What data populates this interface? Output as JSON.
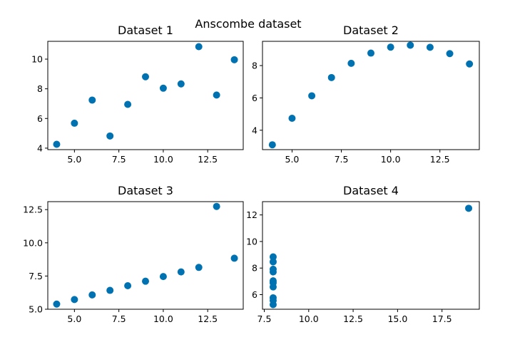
{
  "figure": {
    "title": "Anscombe dataset",
    "marker_color": "#0072b2"
  },
  "chart_data": [
    {
      "type": "scatter",
      "title": "Dataset 1",
      "xlabel": "",
      "ylabel": "",
      "grid": false,
      "xlim": [
        3.5,
        14.5
      ],
      "ylim": [
        3.9,
        11.2
      ],
      "xticks": [
        5.0,
        7.5,
        10.0,
        12.5
      ],
      "xtick_labels": [
        "5.0",
        "7.5",
        "10.0",
        "12.5"
      ],
      "yticks": [
        4,
        6,
        8,
        10
      ],
      "ytick_labels": [
        "4",
        "6",
        "8",
        "10"
      ],
      "x": [
        10,
        8,
        13,
        9,
        11,
        14,
        6,
        4,
        12,
        7,
        5
      ],
      "y": [
        8.04,
        6.95,
        7.58,
        8.81,
        8.33,
        9.96,
        7.24,
        4.26,
        10.84,
        4.82,
        5.68
      ]
    },
    {
      "type": "scatter",
      "title": "Dataset 2",
      "xlabel": "",
      "ylabel": "",
      "grid": false,
      "xlim": [
        3.5,
        14.5
      ],
      "ylim": [
        2.8,
        9.5
      ],
      "xticks": [
        5.0,
        7.5,
        10.0,
        12.5
      ],
      "xtick_labels": [
        "5.0",
        "7.5",
        "10.0",
        "12.5"
      ],
      "yticks": [
        4,
        6,
        8
      ],
      "ytick_labels": [
        "4",
        "6",
        "8"
      ],
      "x": [
        10,
        8,
        13,
        9,
        11,
        14,
        6,
        4,
        12,
        7,
        5
      ],
      "y": [
        9.14,
        8.14,
        8.74,
        8.77,
        9.26,
        8.1,
        6.13,
        3.1,
        9.13,
        7.26,
        4.74
      ]
    },
    {
      "type": "scatter",
      "title": "Dataset 3",
      "xlabel": "",
      "ylabel": "",
      "grid": false,
      "xlim": [
        3.5,
        14.5
      ],
      "ylim": [
        5.0,
        13.1
      ],
      "xticks": [
        5.0,
        7.5,
        10.0,
        12.5
      ],
      "xtick_labels": [
        "5.0",
        "7.5",
        "10.0",
        "12.5"
      ],
      "yticks": [
        5.0,
        7.5,
        10.0,
        12.5
      ],
      "ytick_labels": [
        "5.0",
        "7.5",
        "10.0",
        "12.5"
      ],
      "x": [
        10,
        8,
        13,
        9,
        11,
        14,
        6,
        4,
        12,
        7,
        5
      ],
      "y": [
        7.46,
        6.77,
        12.74,
        7.11,
        7.81,
        8.84,
        6.08,
        5.39,
        8.15,
        6.42,
        5.73
      ]
    },
    {
      "type": "scatter",
      "title": "Dataset 4",
      "xlabel": "",
      "ylabel": "",
      "grid": false,
      "xlim": [
        7.4,
        19.6
      ],
      "ylim": [
        4.9,
        13.0
      ],
      "xticks": [
        7.5,
        10.0,
        12.5,
        15.0,
        17.5
      ],
      "xtick_labels": [
        "7.5",
        "10.0",
        "12.5",
        "15.0",
        "17.5"
      ],
      "yticks": [
        6,
        8,
        10,
        12
      ],
      "ytick_labels": [
        "6",
        "8",
        "10",
        "12"
      ],
      "x": [
        8,
        8,
        8,
        8,
        8,
        8,
        8,
        19,
        8,
        8,
        8
      ],
      "y": [
        6.58,
        5.76,
        7.71,
        8.84,
        8.47,
        7.04,
        5.25,
        12.5,
        5.56,
        7.91,
        6.89
      ]
    }
  ]
}
